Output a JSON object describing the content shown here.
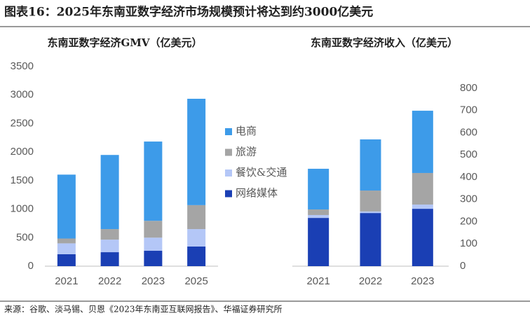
{
  "title": "图表16：2025年东南亚数字经济市场规模预计将达到约3000亿美元",
  "source": "来源：谷歌、淡马锡、贝恩《2023年东南亚互联网报告》、华福证券研究所",
  "chart_data": [
    {
      "type": "stacked_bar",
      "title": "东南亚数字经济GMV（亿美元）",
      "categories": [
        "2021",
        "2022",
        "2023",
        "2025"
      ],
      "series": [
        {
          "name": "网络媒体",
          "color": "#1a3fb4",
          "values": [
            210,
            245,
            270,
            345
          ]
        },
        {
          "name": "餐饮&交通",
          "color": "#b4c7f7",
          "values": [
            190,
            220,
            230,
            305
          ]
        },
        {
          "name": "旅游",
          "color": "#a5a5a5",
          "values": [
            85,
            185,
            295,
            420
          ]
        },
        {
          "name": "电商",
          "color": "#3d9be9",
          "values": [
            1120,
            1300,
            1390,
            1865
          ]
        }
      ],
      "ylim": [
        0,
        3500
      ],
      "yticks": [
        0,
        500,
        1000,
        1500,
        2000,
        2500,
        3000,
        3500
      ],
      "grid": false
    },
    {
      "type": "stacked_bar",
      "title": "东南亚数字经济收入（亿美元）",
      "categories": [
        "2021",
        "2022",
        "2023"
      ],
      "series": [
        {
          "color": "#1a3fb4",
          "values": [
            217,
            239,
            258
          ]
        },
        {
          "color": "#b4c7f7",
          "values": [
            13,
            7,
            19
          ]
        },
        {
          "color": "#a5a5a5",
          "values": [
            25,
            94,
            142
          ]
        },
        {
          "color": "#3d9be9",
          "values": [
            183,
            230,
            280
          ]
        }
      ],
      "ylim": [
        0,
        800
      ],
      "yticks": [
        0,
        100,
        200,
        300,
        400,
        500,
        600,
        700,
        800
      ],
      "grid": false
    }
  ]
}
